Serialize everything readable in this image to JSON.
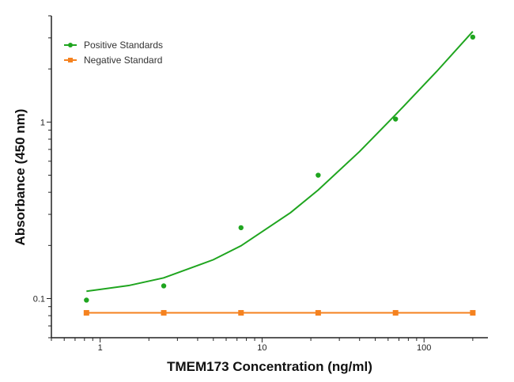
{
  "chart_data": {
    "type": "scatter",
    "title": "",
    "xlabel": "TMEM173 Concentration (ng/ml)",
    "ylabel": "Absorbance (450 nm)",
    "x_scale": "log",
    "y_scale": "log",
    "xlim": [
      0.5,
      248
    ],
    "ylim": [
      0.06,
      4
    ],
    "x_ticks": [
      {
        "value": 1,
        "label": "1"
      },
      {
        "value": 10,
        "label": "10"
      },
      {
        "value": 100,
        "label": "100"
      }
    ],
    "y_ticks": [
      {
        "value": 0.1,
        "label": "0.1"
      },
      {
        "value": 1,
        "label": "1"
      }
    ],
    "grid": false,
    "legend_position": "top-left",
    "series": [
      {
        "name": "Positive Standards",
        "color": "#1fa51f",
        "marker": "circle",
        "x": [
          0.823,
          2.47,
          7.41,
          22.2,
          66.7,
          200
        ],
        "y": [
          0.098,
          0.118,
          0.252,
          0.5,
          1.04,
          3.03
        ],
        "fit": {
          "x": [
            0.823,
            1.5,
            2.47,
            5,
            7.41,
            15,
            22.2,
            40,
            66.7,
            120,
            200
          ],
          "y": [
            0.11,
            0.1185,
            0.131,
            0.166,
            0.199,
            0.307,
            0.412,
            0.681,
            1.1,
            1.94,
            3.26
          ]
        }
      },
      {
        "name": "Negative Standard",
        "color": "#f5821f",
        "marker": "square",
        "x": [
          0.823,
          2.47,
          7.41,
          22.2,
          66.7,
          200
        ],
        "y": [
          0.083,
          0.083,
          0.083,
          0.083,
          0.083,
          0.083
        ]
      }
    ]
  }
}
